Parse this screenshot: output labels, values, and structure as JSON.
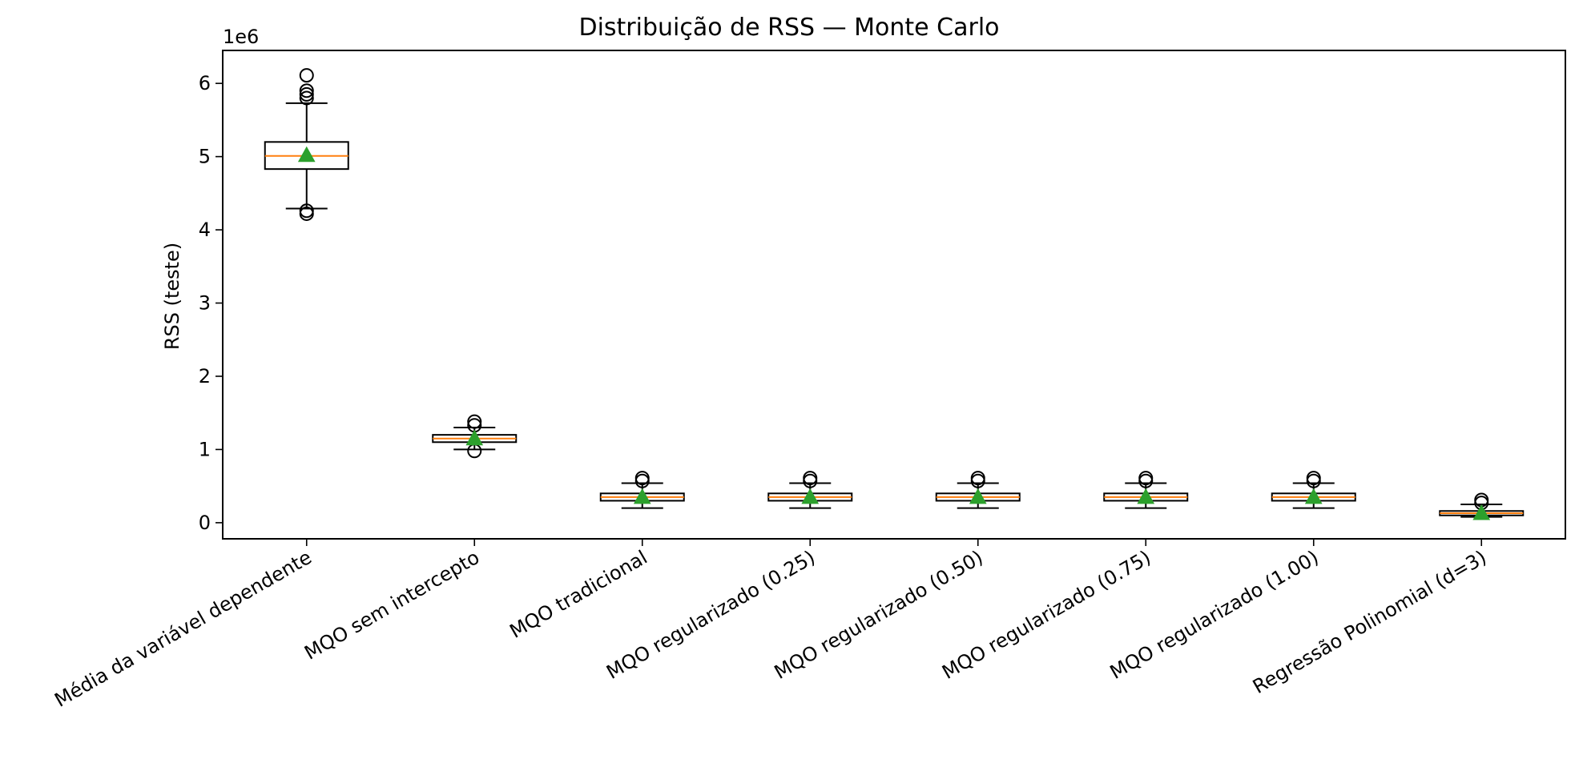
{
  "chart_data": {
    "type": "box",
    "title": "Distribuição de RSS — Monte Carlo",
    "ylabel": "RSS (teste)",
    "xlabel": "",
    "y_scale_label": "1e6",
    "y_multiplier": 1000000,
    "ylim": [
      -0.22,
      6.45
    ],
    "yticks": [
      0,
      1,
      2,
      3,
      4,
      5,
      6
    ],
    "categories": [
      "Média da variável dependente",
      "MQO sem intercepto",
      "MQO tradicional",
      "MQO regularizado (0.25)",
      "MQO regularizado (0.50)",
      "MQO regularizado (0.75)",
      "MQO regularizado (1.00)",
      "Regressão Polinomial (d=3)"
    ],
    "boxes": [
      {
        "whisker_low": 4.29,
        "q1": 4.83,
        "median": 5.01,
        "q3": 5.2,
        "whisker_high": 5.73,
        "mean": 5.02,
        "outliers": [
          4.22,
          4.26,
          5.8,
          5.85,
          5.9,
          6.11
        ]
      },
      {
        "whisker_low": 1.0,
        "q1": 1.1,
        "median": 1.15,
        "q3": 1.2,
        "whisker_high": 1.3,
        "mean": 1.15,
        "outliers": [
          0.98,
          1.33,
          1.38
        ]
      },
      {
        "whisker_low": 0.2,
        "q1": 0.3,
        "median": 0.35,
        "q3": 0.4,
        "whisker_high": 0.54,
        "mean": 0.35,
        "outliers": [
          0.57,
          0.61
        ]
      },
      {
        "whisker_low": 0.2,
        "q1": 0.3,
        "median": 0.35,
        "q3": 0.4,
        "whisker_high": 0.54,
        "mean": 0.35,
        "outliers": [
          0.57,
          0.61
        ]
      },
      {
        "whisker_low": 0.2,
        "q1": 0.3,
        "median": 0.35,
        "q3": 0.4,
        "whisker_high": 0.54,
        "mean": 0.35,
        "outliers": [
          0.57,
          0.61
        ]
      },
      {
        "whisker_low": 0.2,
        "q1": 0.3,
        "median": 0.35,
        "q3": 0.4,
        "whisker_high": 0.54,
        "mean": 0.35,
        "outliers": [
          0.57,
          0.61
        ]
      },
      {
        "whisker_low": 0.2,
        "q1": 0.3,
        "median": 0.35,
        "q3": 0.4,
        "whisker_high": 0.54,
        "mean": 0.35,
        "outliers": [
          0.57,
          0.61
        ]
      },
      {
        "whisker_low": 0.08,
        "q1": 0.1,
        "median": 0.13,
        "q3": 0.16,
        "whisker_high": 0.25,
        "mean": 0.13,
        "outliers": [
          0.27,
          0.31
        ]
      }
    ],
    "grid": false,
    "colors": {
      "box": "#000000",
      "median": "#ff7f0e",
      "mean_marker": "#2ca02c",
      "outlier": "#000000"
    }
  }
}
